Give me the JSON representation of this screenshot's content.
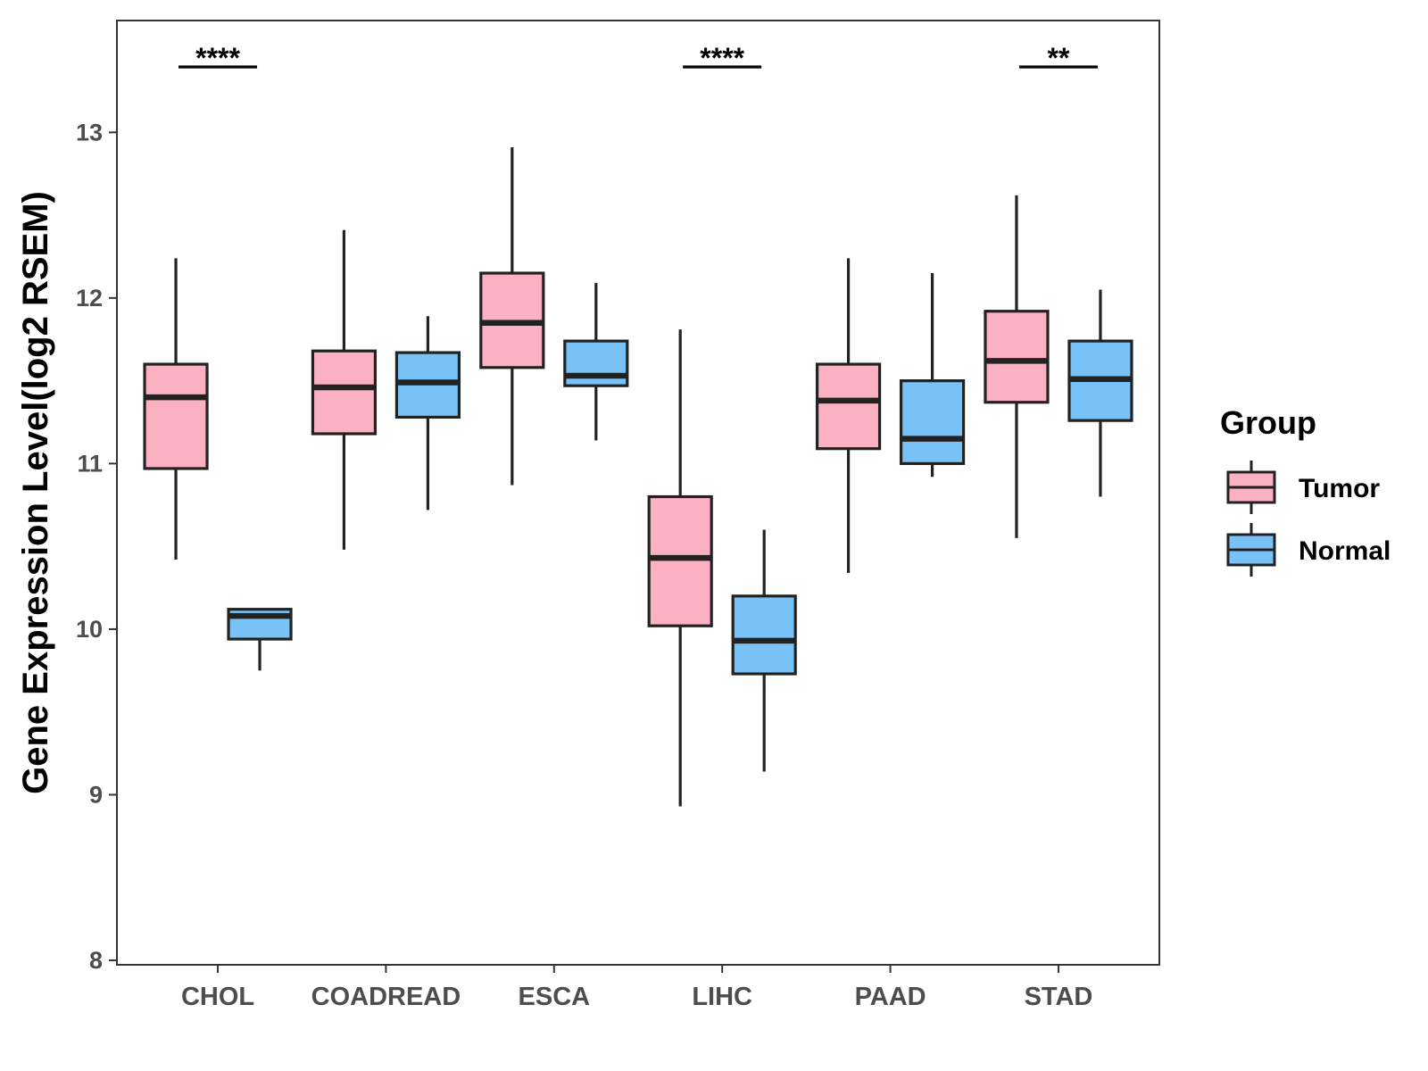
{
  "chart_data": {
    "type": "boxplot",
    "title": "",
    "xlabel": "",
    "ylabel": "Gene Expression Level(log2 RSEM)",
    "ylim": [
      8,
      13.6
    ],
    "yticks": [
      8,
      9,
      10,
      11,
      12,
      13
    ],
    "categories": [
      "CHOL",
      "COADREAD",
      "ESCA",
      "LIHC",
      "PAAD",
      "STAD"
    ],
    "legend": {
      "title": "Group",
      "position": "right"
    },
    "series": [
      {
        "name": "Tumor",
        "color": "#FCB1C3",
        "boxes": [
          {
            "min": 10.42,
            "q1": 10.97,
            "median": 11.4,
            "q3": 11.6,
            "max": 12.24
          },
          {
            "min": 10.48,
            "q1": 11.18,
            "median": 11.46,
            "q3": 11.68,
            "max": 12.41
          },
          {
            "min": 10.87,
            "q1": 11.58,
            "median": 11.85,
            "q3": 12.15,
            "max": 12.91
          },
          {
            "min": 8.93,
            "q1": 10.02,
            "median": 10.43,
            "q3": 10.8,
            "max": 11.81
          },
          {
            "min": 10.34,
            "q1": 11.09,
            "median": 11.38,
            "q3": 11.6,
            "max": 12.24
          },
          {
            "min": 10.55,
            "q1": 11.37,
            "median": 11.62,
            "q3": 11.92,
            "max": 12.62
          }
        ]
      },
      {
        "name": "Normal",
        "color": "#79C2F8",
        "boxes": [
          {
            "min": 9.75,
            "q1": 9.94,
            "median": 10.08,
            "q3": 10.12,
            "max": 10.12
          },
          {
            "min": 10.72,
            "q1": 11.28,
            "median": 11.49,
            "q3": 11.67,
            "max": 11.89
          },
          {
            "min": 11.14,
            "q1": 11.47,
            "median": 11.53,
            "q3": 11.74,
            "max": 12.09
          },
          {
            "min": 9.14,
            "q1": 9.73,
            "median": 9.93,
            "q3": 10.2,
            "max": 10.6
          },
          {
            "min": 10.92,
            "q1": 11.0,
            "median": 11.15,
            "q3": 11.5,
            "max": 12.15
          },
          {
            "min": 10.8,
            "q1": 11.26,
            "median": 11.51,
            "q3": 11.74,
            "max": 12.05
          }
        ]
      }
    ],
    "significance": [
      {
        "category": "CHOL",
        "label": "****"
      },
      {
        "category": "LIHC",
        "label": "****"
      },
      {
        "category": "STAD",
        "label": "**"
      }
    ]
  }
}
